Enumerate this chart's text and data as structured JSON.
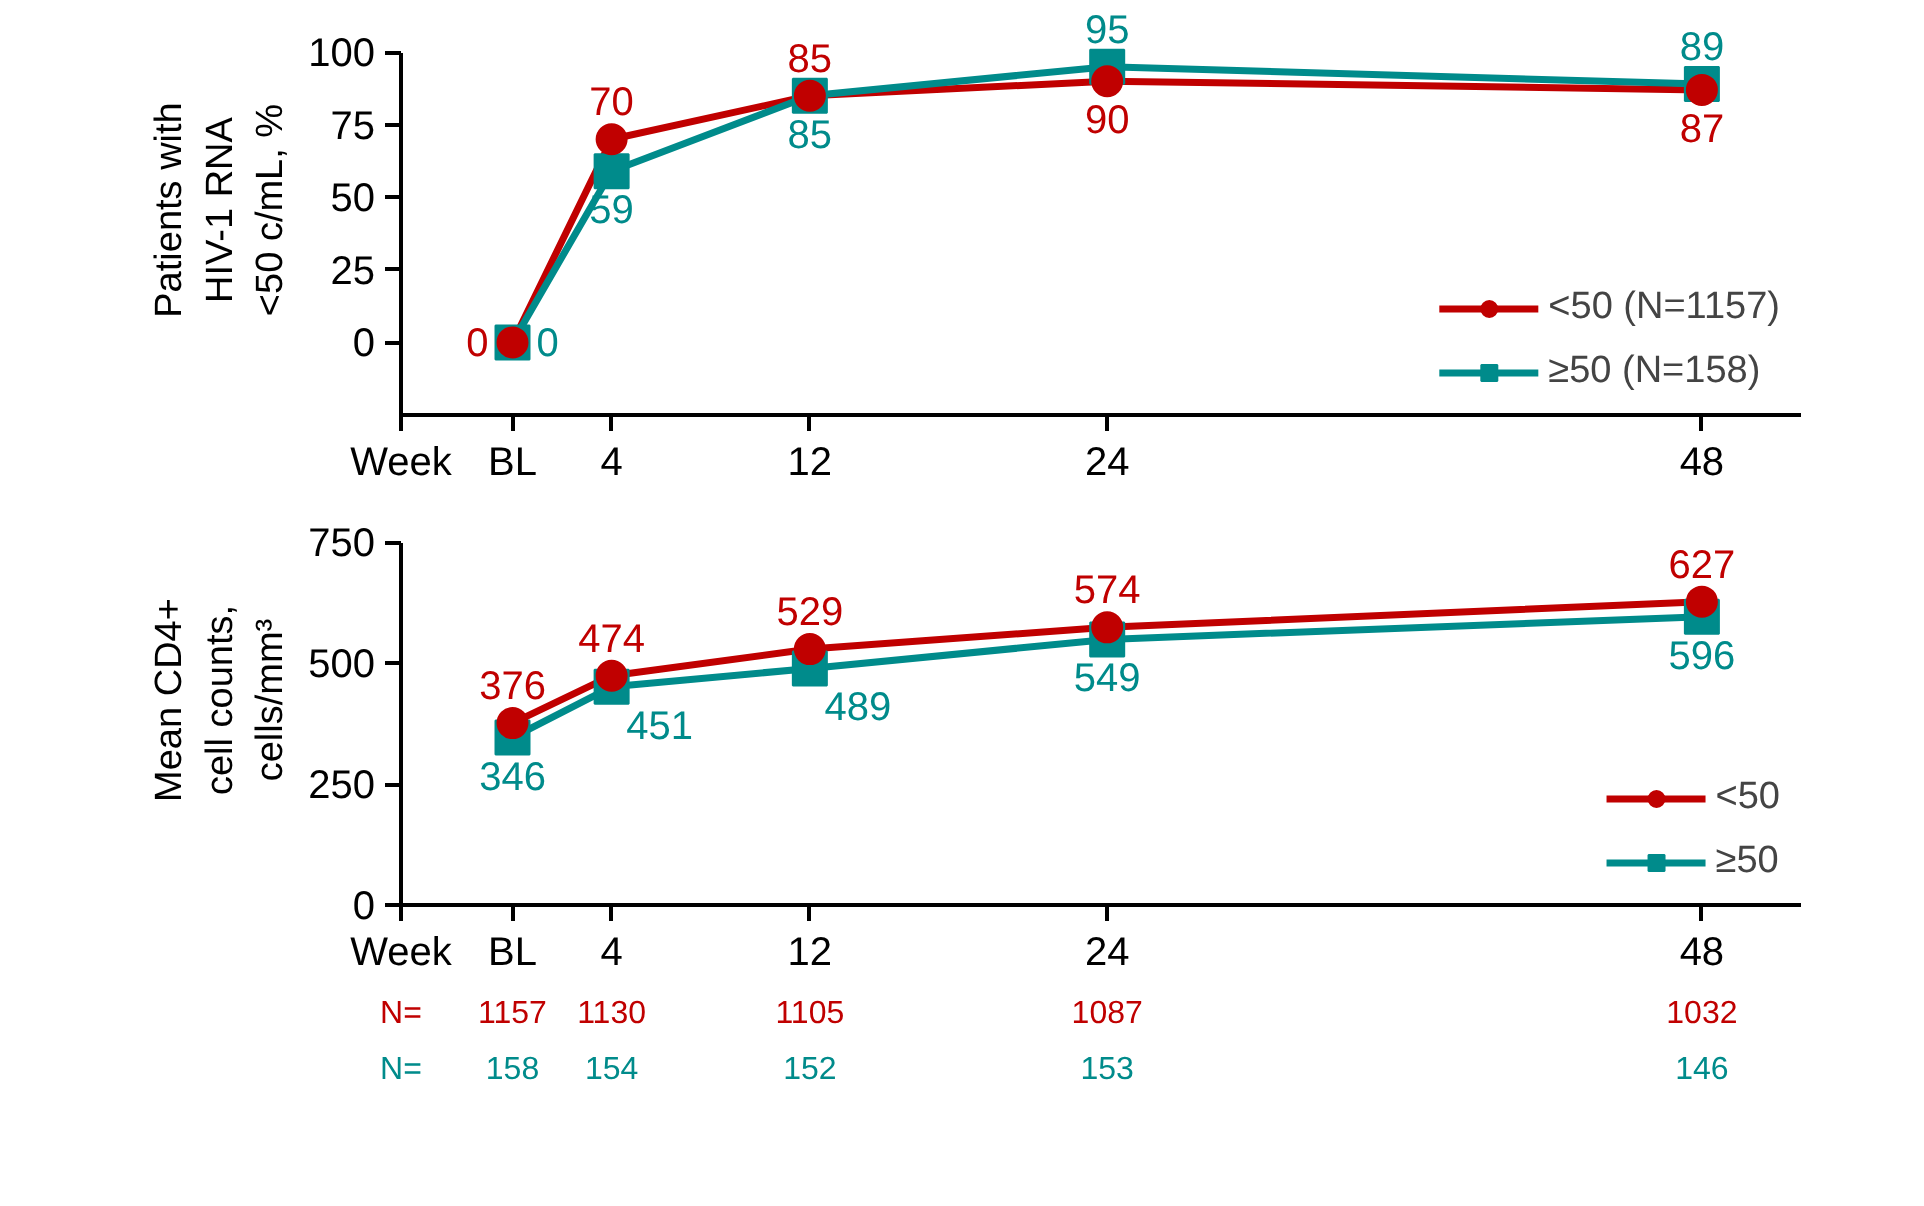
{
  "chart_data": [
    {
      "type": "line",
      "ylabel": "Patients with\nHIV-1 RNA\n<50 c/mL, %",
      "xlabel": "Week",
      "x": [
        0,
        4,
        12,
        24,
        48
      ],
      "xlim": [
        -4.5,
        52
      ],
      "xticks": [
        {
          "value": 0,
          "label": "BL"
        },
        4,
        12,
        24,
        48
      ],
      "ylim": [
        -25,
        100
      ],
      "yticks": [
        0,
        25,
        50,
        75,
        100
      ],
      "grid": false,
      "legend": "bottom right",
      "data_labels": true,
      "line_style": "solid",
      "series": [
        {
          "name": "<50 (N=1157)",
          "color": "#c00000",
          "marker": "circle",
          "values": [
            0,
            70,
            85,
            90,
            87
          ]
        },
        {
          "name": "≥50 (N=158)",
          "color": "#008b8b",
          "marker": "square",
          "values": [
            0,
            59,
            85,
            95,
            89
          ]
        }
      ]
    },
    {
      "type": "line",
      "ylabel": "Mean CD4+\ncell counts,\ncells/mm³",
      "xlabel": "Week",
      "x": [
        0,
        4,
        12,
        24,
        48
      ],
      "xlim": [
        -4.5,
        52
      ],
      "xticks": [
        {
          "value": 0,
          "label": "BL"
        },
        4,
        12,
        24,
        48
      ],
      "ylim": [
        0,
        750
      ],
      "yticks": [
        0,
        250,
        500,
        750
      ],
      "grid": false,
      "legend": "bottom right",
      "data_labels": true,
      "line_style": "solid",
      "series": [
        {
          "name": "<50",
          "color": "#c00000",
          "marker": "circle",
          "values": [
            376,
            474,
            529,
            574,
            627
          ]
        },
        {
          "name": "≥50",
          "color": "#008b8b",
          "marker": "square",
          "values": [
            346,
            451,
            489,
            549,
            596
          ]
        }
      ],
      "annotations": [
        "N=",
        "1157",
        "1130",
        "1105",
        "1087",
        "1032",
        "N=",
        "158",
        "154",
        "152",
        "153",
        "146"
      ]
    }
  ]
}
